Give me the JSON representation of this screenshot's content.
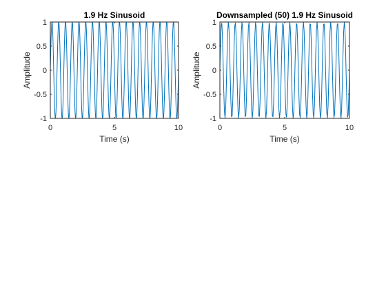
{
  "chart_data": [
    {
      "type": "line",
      "title": "1.9 Hz Sinusoid",
      "xlabel": "Time (s)",
      "ylabel": "Amplitude",
      "xlim": [
        0,
        10
      ],
      "ylim": [
        -1,
        1
      ],
      "xticks": [
        "0",
        "5",
        "10"
      ],
      "yticks": [
        "-1",
        "-0.5",
        "0",
        "0.5",
        "1"
      ],
      "grid": false,
      "series": [
        {
          "frequency_hz": 1.9,
          "amplitude": 1,
          "t_start": 0,
          "t_end": 10,
          "sample_step": 0.001,
          "color": "#0072BD"
        }
      ]
    },
    {
      "type": "line",
      "title": "Downsampled (50) 1.9 Hz Sinusoid",
      "xlabel": "Time (s)",
      "ylabel": "Amplitude",
      "xlim": [
        0,
        10
      ],
      "ylim": [
        -1,
        1
      ],
      "xticks": [
        "0",
        "5",
        "10"
      ],
      "yticks": [
        "-1",
        "-0.5",
        "0",
        "0.5",
        "1"
      ],
      "grid": false,
      "series": [
        {
          "frequency_hz": 1.9,
          "amplitude": 1,
          "t_start": 0,
          "t_end": 10,
          "sample_step": 0.05,
          "color": "#0072BD"
        }
      ]
    }
  ]
}
